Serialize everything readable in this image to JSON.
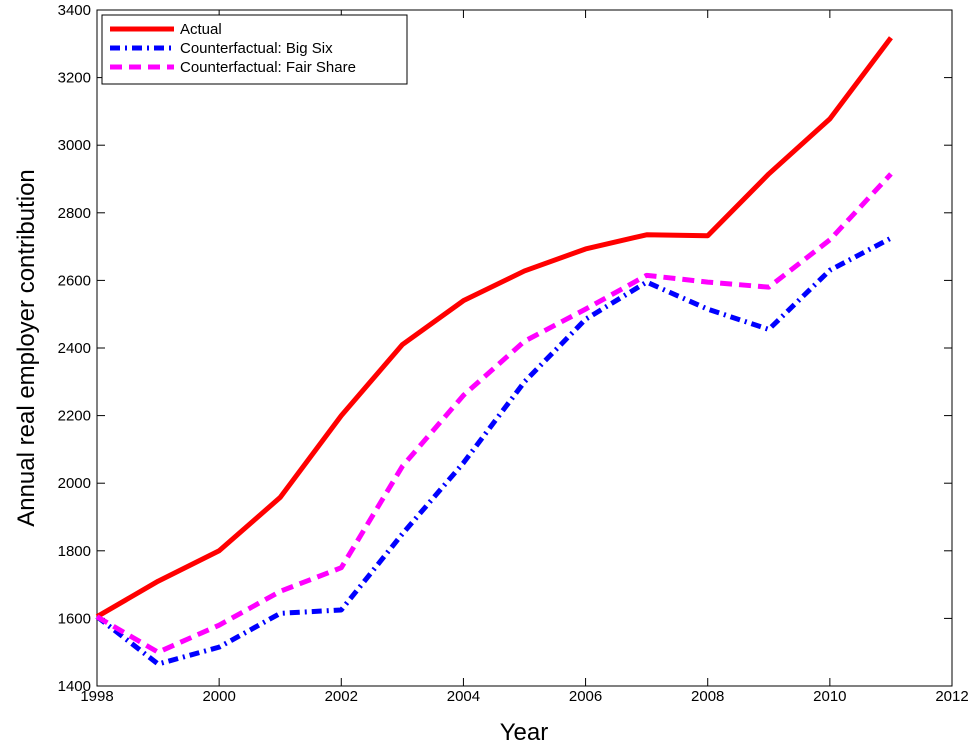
{
  "chart_data": {
    "type": "line",
    "xlabel": "Year",
    "ylabel": "Annual real employer contribution",
    "x": [
      1998,
      1999,
      2000,
      2001,
      2002,
      2003,
      2004,
      2005,
      2006,
      2007,
      2008,
      2009,
      2010,
      2011
    ],
    "series": [
      {
        "name": "Actual",
        "color": "#ff0000",
        "style": "solid",
        "values": [
          1605,
          1710,
          1800,
          1958,
          2200,
          2410,
          2540,
          2628,
          2693,
          2735,
          2732,
          2915,
          3078,
          3318
        ]
      },
      {
        "name": "Counterfactual: Big Six",
        "color": "#0000ff",
        "style": "dashdot",
        "values": [
          1605,
          1465,
          1515,
          1615,
          1625,
          1850,
          2060,
          2300,
          2485,
          2595,
          2515,
          2455,
          2630,
          2725
        ]
      },
      {
        "name": "Counterfactual: Fair Share",
        "color": "#ff00ff",
        "style": "dashed",
        "values": [
          1605,
          1500,
          1580,
          1680,
          1750,
          2050,
          2260,
          2420,
          2515,
          2615,
          2595,
          2580,
          2720,
          2915
        ]
      }
    ],
    "xlim": [
      1998,
      2012
    ],
    "xticks": [
      1998,
      2000,
      2002,
      2004,
      2006,
      2008,
      2010,
      2012
    ],
    "ylim": [
      1400,
      3400
    ],
    "yticks": [
      1400,
      1600,
      1800,
      2000,
      2200,
      2400,
      2600,
      2800,
      3000,
      3200,
      3400
    ],
    "legend": "upper left"
  }
}
